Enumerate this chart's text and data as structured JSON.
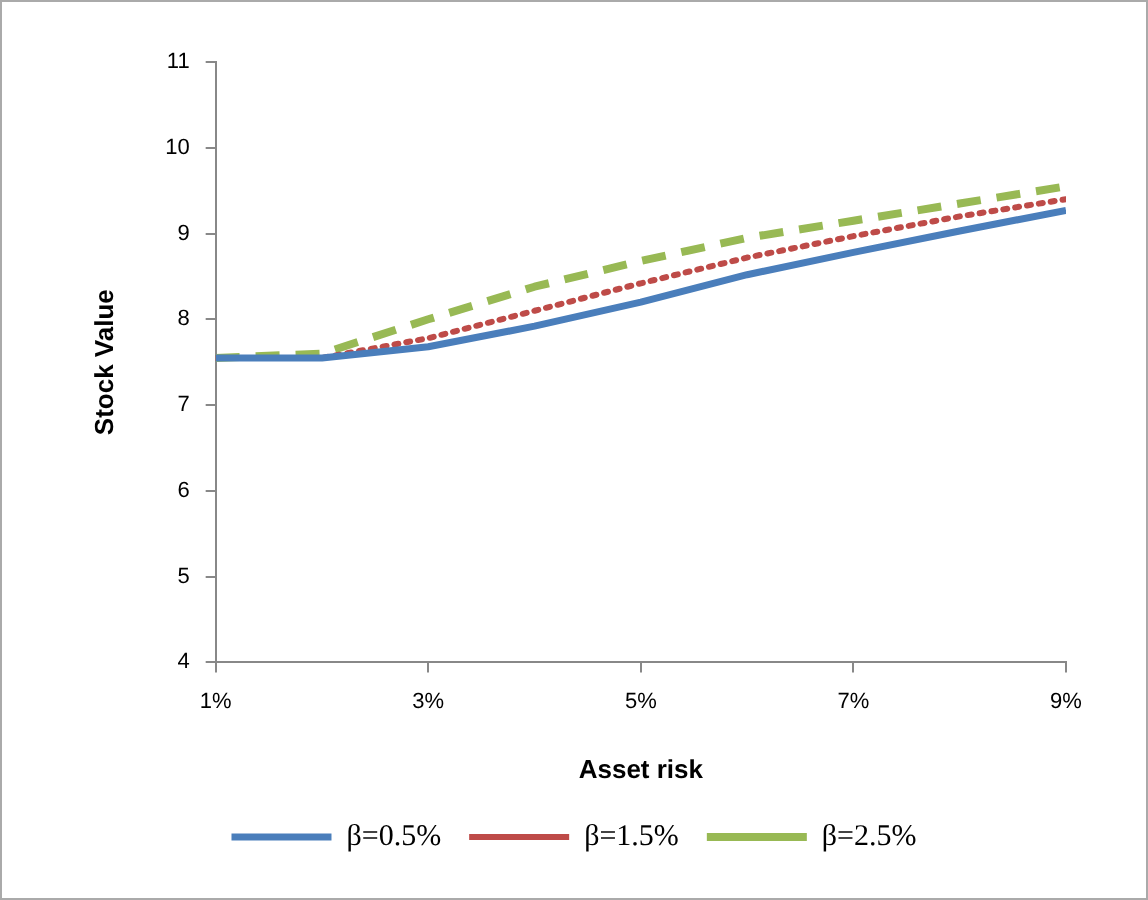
{
  "chart_data": {
    "type": "line",
    "xlabel": "Asset risk",
    "ylabel": "Stock Value",
    "x": [
      1,
      2,
      3,
      4,
      5,
      6,
      7,
      8,
      9
    ],
    "xlim": [
      1,
      9
    ],
    "xticks": [
      {
        "value": 1,
        "label": "1%"
      },
      {
        "value": 3,
        "label": "3%"
      },
      {
        "value": 5,
        "label": "5%"
      },
      {
        "value": 7,
        "label": "7%"
      },
      {
        "value": 9,
        "label": "9%"
      }
    ],
    "ylim": [
      4,
      11
    ],
    "yticks": [
      4,
      5,
      6,
      7,
      8,
      9,
      10,
      11
    ],
    "grid": false,
    "legend": "bottom",
    "marker": "none",
    "series": [
      {
        "name": "β=0.5%",
        "color": "#4a7ebb",
        "line_style": "solid",
        "values": [
          7.55,
          7.55,
          7.68,
          7.92,
          8.2,
          8.52,
          8.78,
          9.03,
          9.27
        ]
      },
      {
        "name": "β=1.5%",
        "color": "#be4b48",
        "line_style": "dotted",
        "values": [
          7.55,
          7.55,
          7.78,
          8.1,
          8.42,
          8.72,
          8.97,
          9.2,
          9.4
        ]
      },
      {
        "name": "β=2.5%",
        "color": "#98b954",
        "line_style": "dashed",
        "values": [
          7.55,
          7.6,
          8.0,
          8.38,
          8.68,
          8.95,
          9.15,
          9.35,
          9.55
        ]
      }
    ]
  }
}
